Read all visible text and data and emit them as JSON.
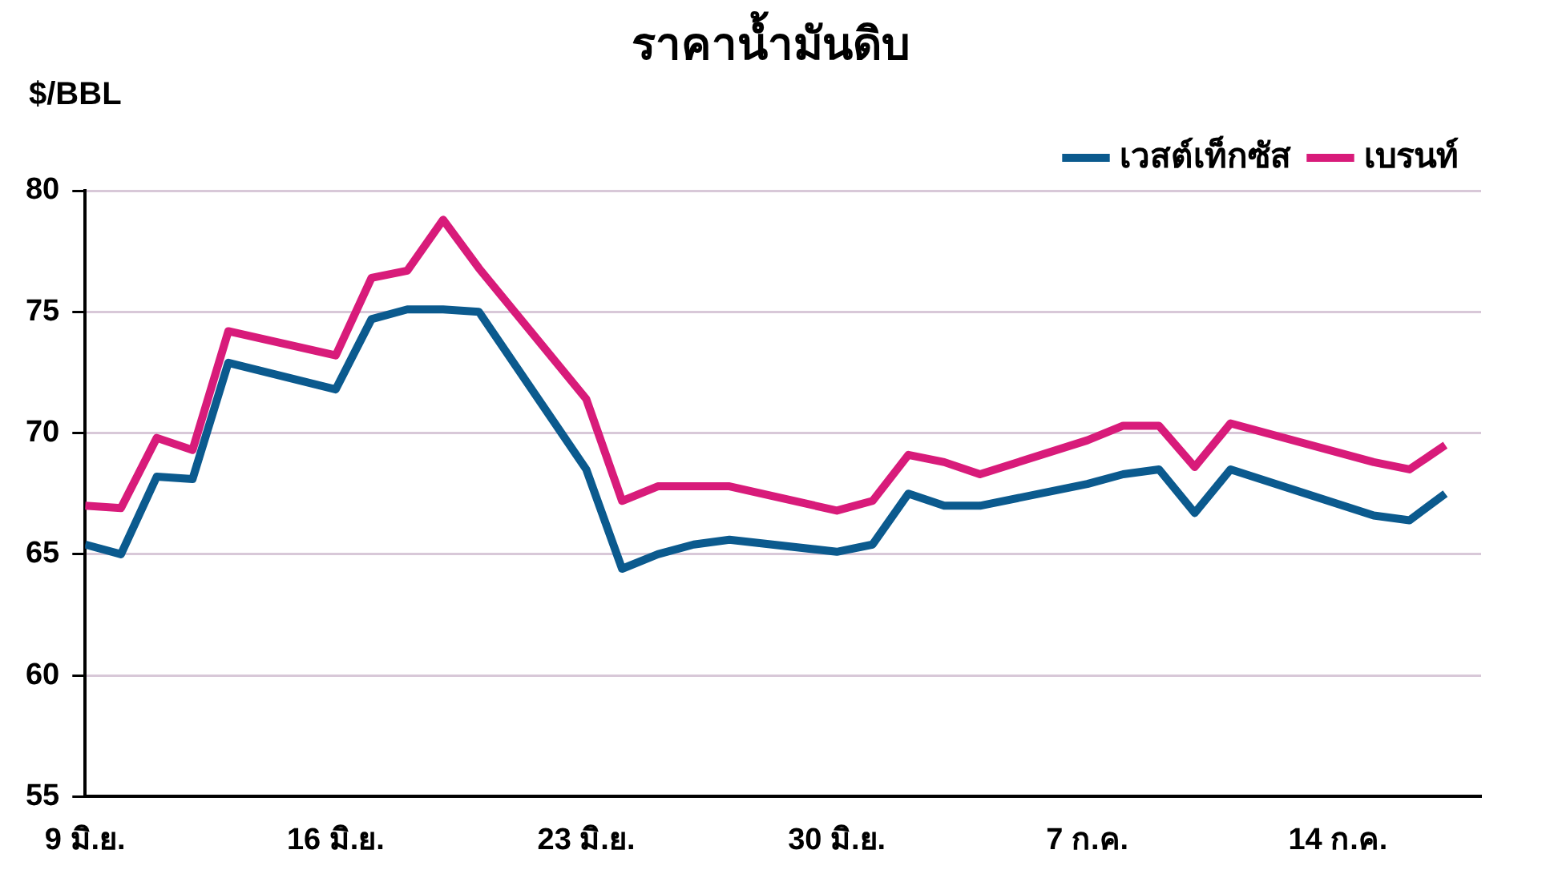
{
  "chart_data": {
    "type": "line",
    "title": "ราคาน้ำมันดิบ",
    "ylabel": "$/BBL",
    "x": [
      "--06-09",
      "--06-10",
      "--06-11",
      "--06-12",
      "--06-13",
      "--06-16",
      "--06-17",
      "--06-18",
      "--06-19",
      "--06-20",
      "--06-23",
      "--06-24",
      "--06-25",
      "--06-26",
      "--06-27",
      "--06-30",
      "--07-01",
      "--07-02",
      "--07-03",
      "--07-04",
      "--07-07",
      "--07-08",
      "--07-09",
      "--07-10",
      "--07-11",
      "--07-15",
      "--07-16",
      "--07-17"
    ],
    "series": [
      {
        "name": "เวสต์เท็กซัส",
        "color": "#0b5a8e",
        "values": [
          65.4,
          65.0,
          68.2,
          68.1,
          72.9,
          71.8,
          74.7,
          75.1,
          75.1,
          75.0,
          68.5,
          64.4,
          65.0,
          65.4,
          65.6,
          65.1,
          65.4,
          67.5,
          67.0,
          67.0,
          67.9,
          68.3,
          68.5,
          66.7,
          68.5,
          66.6,
          66.4,
          67.5
        ]
      },
      {
        "name": "เบรนท์",
        "color": "#d81b7a",
        "values": [
          67.0,
          66.9,
          69.8,
          69.3,
          74.2,
          73.2,
          76.4,
          76.7,
          78.8,
          76.8,
          71.4,
          67.2,
          67.8,
          67.8,
          67.8,
          66.8,
          67.2,
          69.1,
          68.8,
          68.3,
          69.7,
          70.3,
          70.3,
          68.6,
          70.4,
          68.8,
          68.5,
          69.5
        ]
      }
    ],
    "xlim": [
      "--06-09",
      "--07-18"
    ],
    "xticks": [
      {
        "value": "--06-09",
        "label": "9 มิ.ย."
      },
      {
        "value": "--06-16",
        "label": "16 มิ.ย."
      },
      {
        "value": "--06-23",
        "label": "23 มิ.ย."
      },
      {
        "value": "--06-30",
        "label": "30 มิ.ย."
      },
      {
        "value": "--07-07",
        "label": "7 ก.ค."
      },
      {
        "value": "--07-14",
        "label": "14 ก.ค."
      }
    ],
    "ylim": [
      55,
      80
    ],
    "yticks": [
      55,
      60,
      65,
      70,
      75,
      80
    ],
    "grid": "y",
    "legend": "top right",
    "marker": "none",
    "line_style": "solid"
  }
}
